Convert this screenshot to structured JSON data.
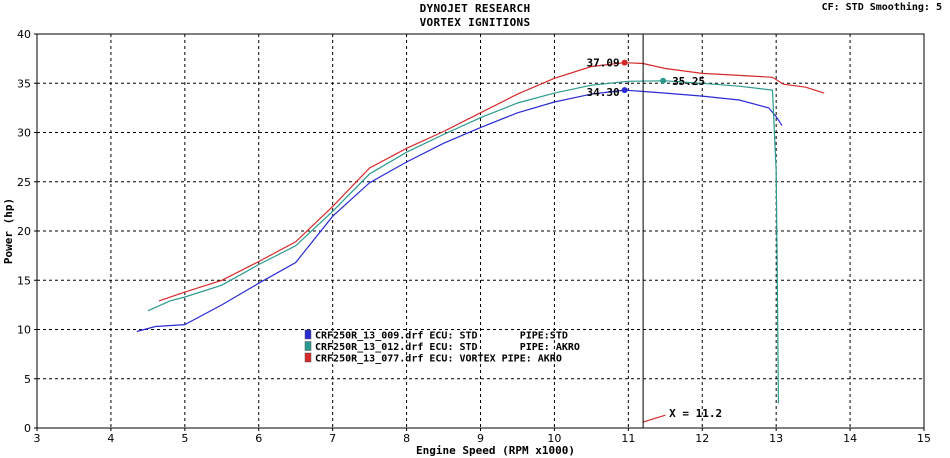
{
  "header": {
    "title_line1": "DYNOJET RESEARCH",
    "title_line2": "VORTEX IGNITIONS",
    "cf_info": "CF: STD  Smoothing: 5"
  },
  "chart_data": {
    "type": "line",
    "xlabel": "Engine Speed (RPM x1000)",
    "ylabel": "Power (hp)",
    "xlim": [
      3,
      15
    ],
    "ylim": [
      0,
      40
    ],
    "x_ticks": [
      "3",
      "4",
      "5",
      "6",
      "7",
      "8",
      "9",
      "10",
      "11",
      "12",
      "13",
      "14",
      "15"
    ],
    "y_ticks": [
      "0",
      "5",
      "10",
      "15",
      "20",
      "25",
      "30",
      "35",
      "40"
    ],
    "grid": true,
    "legend_position": "bottom-center",
    "cursor": {
      "x": 11.2,
      "label": "X = 11.2"
    },
    "series": [
      {
        "name": "CRF250R_13_009.drf ECU: STD       PIPE:STD",
        "color": "#2b2bd6",
        "points": [
          [
            4.35,
            9.8
          ],
          [
            4.6,
            10.3
          ],
          [
            5.0,
            10.5
          ],
          [
            5.5,
            12.5
          ],
          [
            6.0,
            14.7
          ],
          [
            6.5,
            16.8
          ],
          [
            7.0,
            21.5
          ],
          [
            7.5,
            24.9
          ],
          [
            8.0,
            27.0
          ],
          [
            8.5,
            28.9
          ],
          [
            9.0,
            30.5
          ],
          [
            9.5,
            32.0
          ],
          [
            10.0,
            33.1
          ],
          [
            10.5,
            33.9
          ],
          [
            10.95,
            34.3
          ],
          [
            11.5,
            34.0
          ],
          [
            12.0,
            33.7
          ],
          [
            12.5,
            33.3
          ],
          [
            12.9,
            32.5
          ],
          [
            13.0,
            31.6
          ],
          [
            13.08,
            30.7
          ]
        ],
        "peak": {
          "x": 10.95,
          "y": 34.3,
          "label": "34.30"
        }
      },
      {
        "name": "CRF250R_13_012.drf ECU: STD       PIPE: AKRO",
        "color": "#2a9a8e",
        "points": [
          [
            4.5,
            11.9
          ],
          [
            4.8,
            12.9
          ],
          [
            5.0,
            13.3
          ],
          [
            5.5,
            14.5
          ],
          [
            6.0,
            16.6
          ],
          [
            6.5,
            18.5
          ],
          [
            7.0,
            22.0
          ],
          [
            7.5,
            25.8
          ],
          [
            8.0,
            28.0
          ],
          [
            8.5,
            29.8
          ],
          [
            9.0,
            31.5
          ],
          [
            9.5,
            33.0
          ],
          [
            10.0,
            34.0
          ],
          [
            10.5,
            34.8
          ],
          [
            11.0,
            35.2
          ],
          [
            11.5,
            35.25
          ],
          [
            12.0,
            35.0
          ],
          [
            12.5,
            34.7
          ],
          [
            12.95,
            34.3
          ],
          [
            13.0,
            26.0
          ],
          [
            13.02,
            12.0
          ],
          [
            13.03,
            2.5
          ]
        ],
        "peak": {
          "x": 11.47,
          "y": 35.25,
          "label": "35.25"
        }
      },
      {
        "name": "CRF250R_13_077.drf ECU: VORTEX PIPE: AKRO",
        "color": "#d62a2a",
        "points": [
          [
            4.65,
            12.9
          ],
          [
            5.0,
            13.8
          ],
          [
            5.5,
            15.0
          ],
          [
            6.0,
            16.9
          ],
          [
            6.5,
            18.9
          ],
          [
            7.0,
            22.5
          ],
          [
            7.5,
            26.4
          ],
          [
            8.0,
            28.4
          ],
          [
            8.5,
            30.1
          ],
          [
            9.0,
            32.0
          ],
          [
            9.5,
            33.9
          ],
          [
            10.0,
            35.5
          ],
          [
            10.5,
            36.7
          ],
          [
            10.95,
            37.09
          ],
          [
            11.2,
            37.0
          ],
          [
            11.5,
            36.5
          ],
          [
            12.0,
            36.0
          ],
          [
            12.5,
            35.8
          ],
          [
            12.95,
            35.6
          ],
          [
            13.1,
            34.9
          ],
          [
            13.4,
            34.6
          ],
          [
            13.65,
            34.0
          ]
        ],
        "peak": {
          "x": 10.95,
          "y": 37.09,
          "label": "37.09"
        }
      }
    ],
    "extra_segments": [
      {
        "color": "#d62a2a",
        "points": [
          [
            11.2,
            0.6
          ],
          [
            11.5,
            1.3
          ]
        ]
      }
    ]
  }
}
